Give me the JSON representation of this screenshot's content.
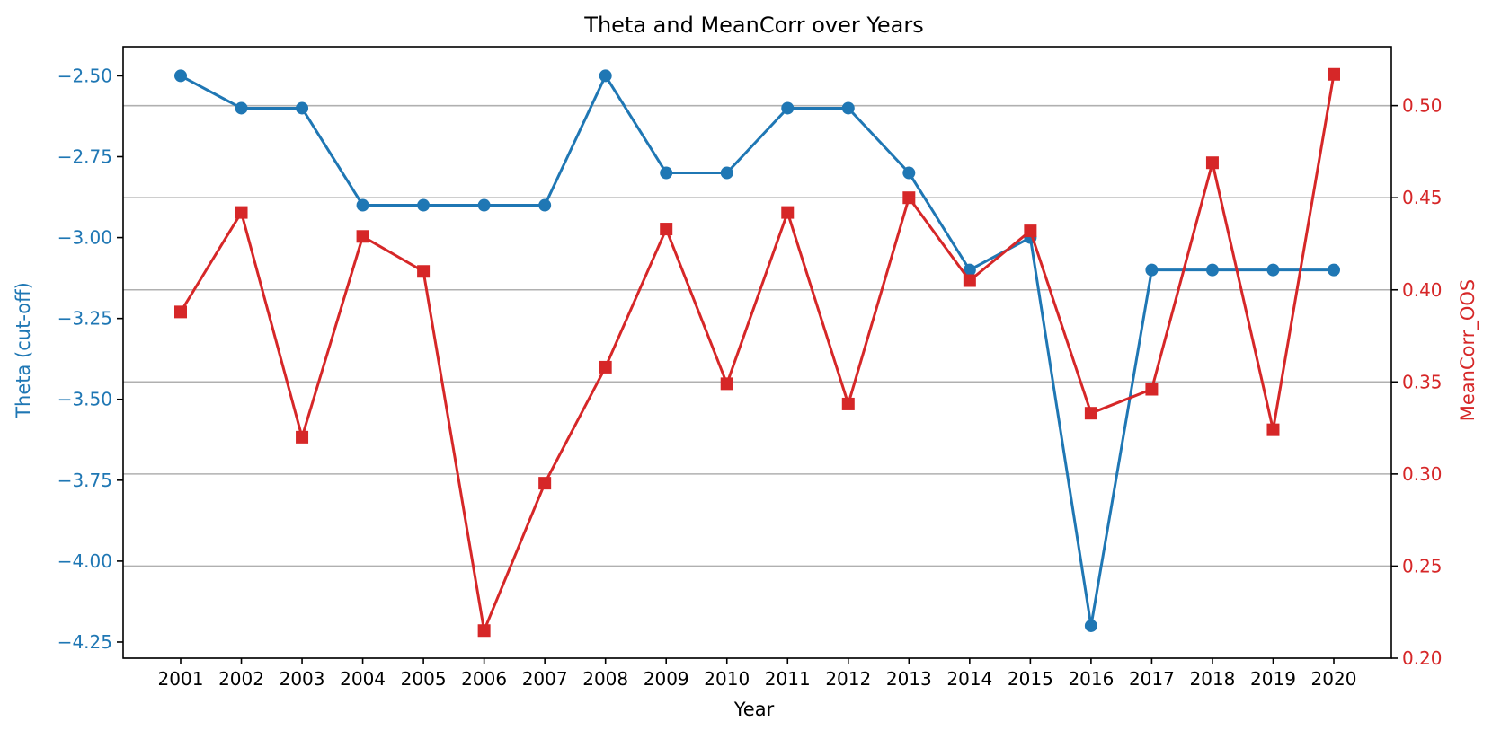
{
  "chart_data": {
    "type": "line",
    "title": "Theta and MeanCorr over Years",
    "xlabel": "Year",
    "categories": [
      "2001",
      "2002",
      "2003",
      "2004",
      "2005",
      "2006",
      "2007",
      "2008",
      "2009",
      "2010",
      "2011",
      "2012",
      "2013",
      "2014",
      "2015",
      "2016",
      "2017",
      "2018",
      "2019",
      "2020"
    ],
    "grid": "horizontal lines at right-axis ticks",
    "axes": {
      "left": {
        "label": "Theta (cut-off)",
        "ylim": [
          -4.3,
          -2.41
        ],
        "ticks": [
          -2.5,
          -2.75,
          -3.0,
          -3.25,
          -3.5,
          -3.75,
          -4.0,
          -4.25
        ],
        "tick_labels": [
          "−2.50",
          "−2.75",
          "−3.00",
          "−3.25",
          "−3.50",
          "−3.75",
          "−4.00",
          "−4.25"
        ],
        "color": "#1f77b4"
      },
      "right": {
        "label": "MeanCorr_OOS",
        "ylim": [
          0.2,
          0.532
        ],
        "ticks": [
          0.2,
          0.25,
          0.3,
          0.35,
          0.4,
          0.45,
          0.5
        ],
        "tick_labels": [
          "0.20",
          "0.25",
          "0.30",
          "0.35",
          "0.40",
          "0.45",
          "0.50"
        ],
        "color": "#d62728"
      }
    },
    "series": [
      {
        "axis": "left",
        "marker": "circle",
        "color": "#1f77b4",
        "values": [
          -2.5,
          -2.6,
          -2.6,
          -2.9,
          -2.9,
          -2.9,
          -2.9,
          -2.5,
          -2.8,
          -2.8,
          -2.6,
          -2.6,
          -2.8,
          -3.1,
          -3.0,
          -4.2,
          -3.1,
          -3.1,
          -3.1,
          -3.1
        ]
      },
      {
        "axis": "right",
        "marker": "square",
        "color": "#d62728",
        "values": [
          0.388,
          0.442,
          0.32,
          0.429,
          0.41,
          0.215,
          0.295,
          0.358,
          0.433,
          0.349,
          0.442,
          0.338,
          0.45,
          0.405,
          0.432,
          0.333,
          0.346,
          0.469,
          0.324,
          0.517
        ]
      }
    ]
  }
}
